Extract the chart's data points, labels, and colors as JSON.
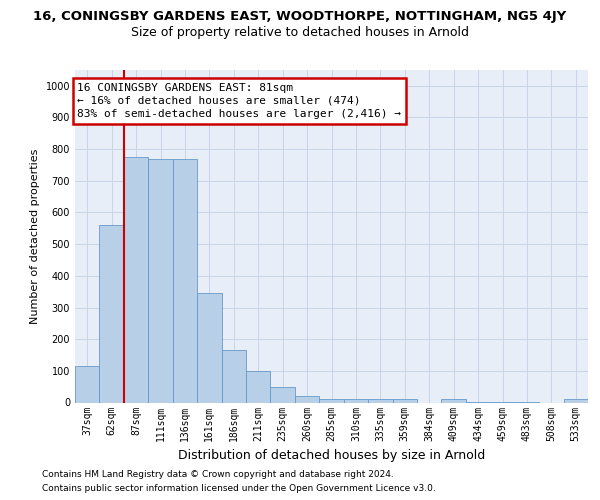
{
  "title1": "16, CONINGSBY GARDENS EAST, WOODTHORPE, NOTTINGHAM, NG5 4JY",
  "title2": "Size of property relative to detached houses in Arnold",
  "xlabel": "Distribution of detached houses by size in Arnold",
  "ylabel": "Number of detached properties",
  "footer1": "Contains HM Land Registry data © Crown copyright and database right 2024.",
  "footer2": "Contains public sector information licensed under the Open Government Licence v3.0.",
  "annotation_title": "16 CONINGSBY GARDENS EAST: 81sqm",
  "annotation_line1": "← 16% of detached houses are smaller (474)",
  "annotation_line2": "83% of semi-detached houses are larger (2,416) →",
  "bar_labels": [
    "37sqm",
    "62sqm",
    "87sqm",
    "111sqm",
    "136sqm",
    "161sqm",
    "186sqm",
    "211sqm",
    "235sqm",
    "260sqm",
    "285sqm",
    "310sqm",
    "335sqm",
    "359sqm",
    "384sqm",
    "409sqm",
    "434sqm",
    "459sqm",
    "483sqm",
    "508sqm",
    "533sqm"
  ],
  "bar_values": [
    115,
    560,
    775,
    770,
    770,
    345,
    165,
    98,
    50,
    20,
    12,
    12,
    12,
    10,
    0,
    10,
    2,
    2,
    2,
    0,
    10
  ],
  "bar_color": "#b8cfe8",
  "bar_edge_color": "#6699cc",
  "vline_x": 1.5,
  "vline_color": "#cc0000",
  "annotation_box_edgecolor": "#cc0000",
  "ylim": [
    0,
    1050
  ],
  "yticks": [
    0,
    100,
    200,
    300,
    400,
    500,
    600,
    700,
    800,
    900,
    1000
  ],
  "grid_color": "#c8d4e8",
  "bg_color": "#e8eef8",
  "title1_fontsize": 9.5,
  "title2_fontsize": 9.0,
  "xlabel_fontsize": 9.0,
  "ylabel_fontsize": 8.0,
  "tick_fontsize": 7.0,
  "annotation_fontsize": 8.0,
  "footer_fontsize": 6.5
}
